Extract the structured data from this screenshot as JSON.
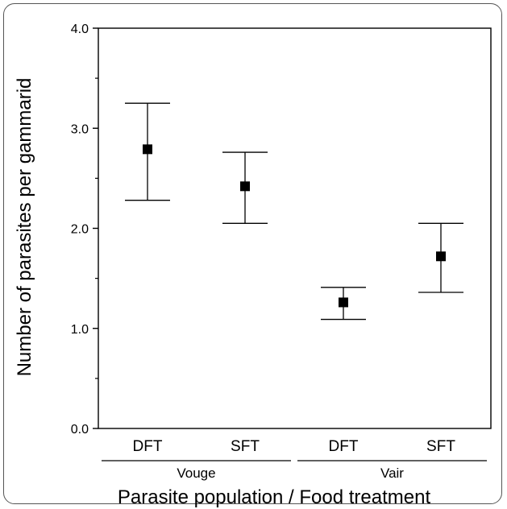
{
  "chart_data": {
    "type": "scatter",
    "subtype": "point-with-error-bars",
    "title": "",
    "xlabel": "Parasite population / Food treatment",
    "ylabel": "Number of parasites per gammarid",
    "ylim": [
      0.0,
      4.0
    ],
    "yticks": [
      "0.0",
      "1.0",
      "2.0",
      "3.0",
      "4.0"
    ],
    "grid": false,
    "legend": "none",
    "categories": [
      "DFT",
      "SFT",
      "DFT",
      "SFT"
    ],
    "groups": [
      {
        "label": "Vouge",
        "categories": [
          0,
          1
        ]
      },
      {
        "label": "Vair",
        "categories": [
          2,
          3
        ]
      }
    ],
    "points": [
      {
        "category": "DFT",
        "group": "Vouge",
        "mean": 2.79,
        "lower": 2.28,
        "upper": 3.25
      },
      {
        "category": "SFT",
        "group": "Vouge",
        "mean": 2.42,
        "lower": 2.05,
        "upper": 2.76
      },
      {
        "category": "DFT",
        "group": "Vair",
        "mean": 1.26,
        "lower": 1.09,
        "upper": 1.41
      },
      {
        "category": "SFT",
        "group": "Vair",
        "mean": 1.72,
        "lower": 1.36,
        "upper": 2.05
      }
    ],
    "colors": {
      "marker": "#000000",
      "line": "#000000",
      "border": "#555555"
    }
  }
}
